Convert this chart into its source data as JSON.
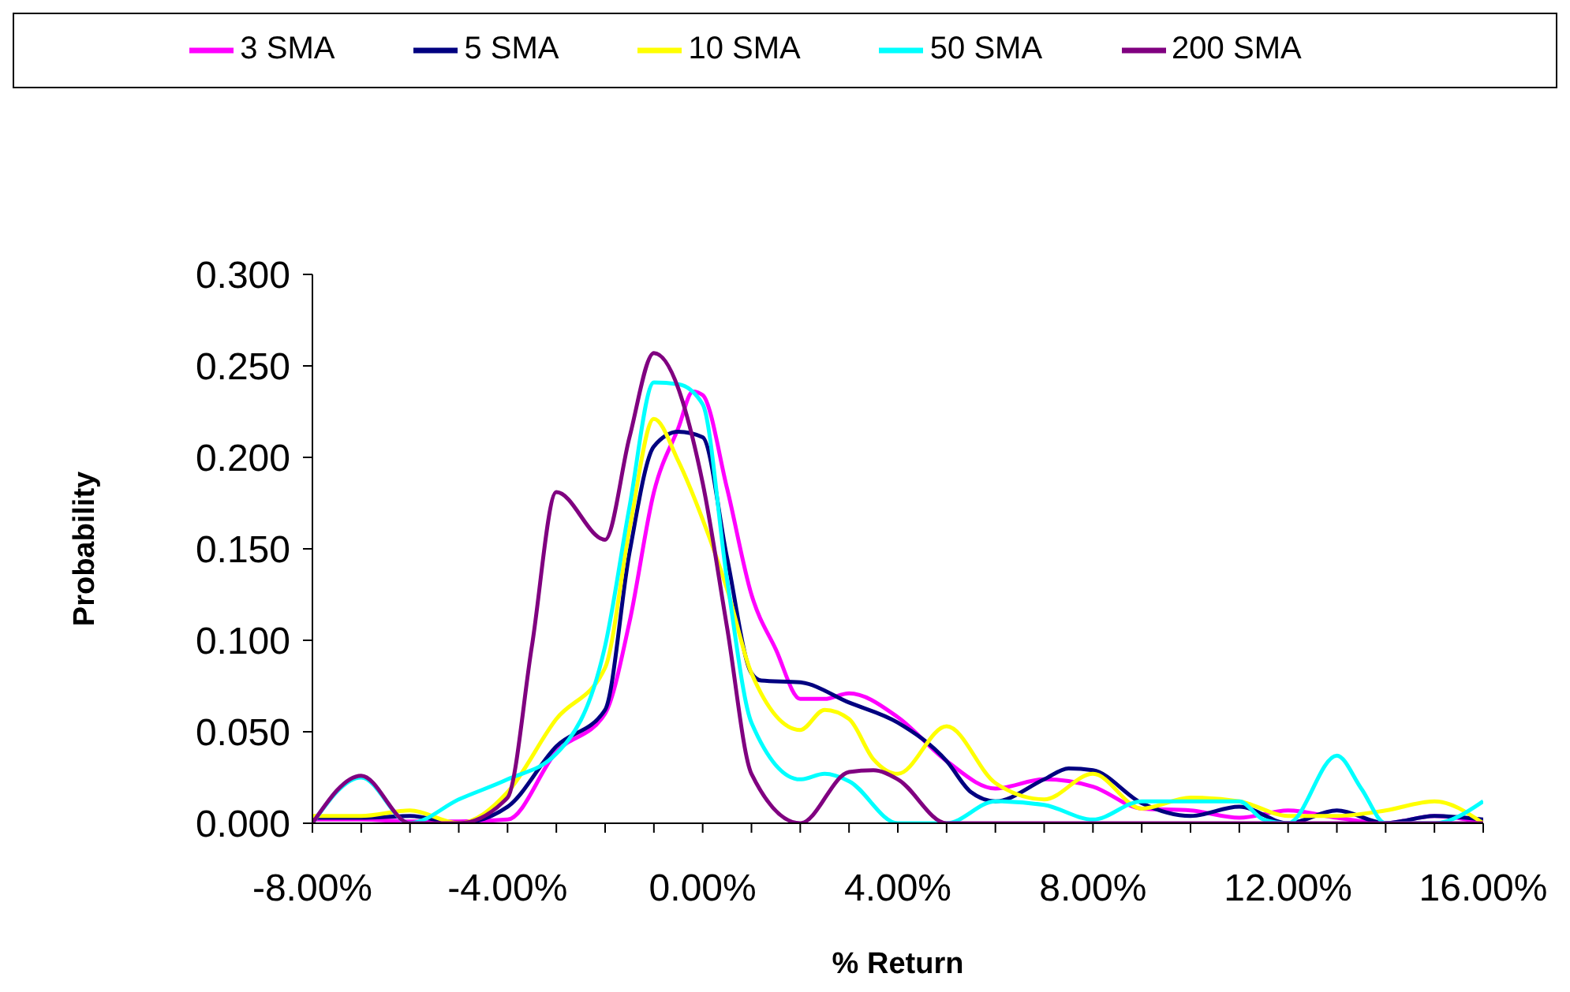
{
  "chart_data": {
    "type": "line",
    "xlabel": "% Return",
    "ylabel": "Probability",
    "legend": "top",
    "grid": false,
    "marker": "none",
    "line_style": "solid",
    "xlim": [
      -8,
      16
    ],
    "ylim": [
      0,
      0.3
    ],
    "xticks": [
      {
        "value": -8,
        "label": "-8.00%"
      },
      {
        "value": -7,
        "label": null
      },
      {
        "value": -6,
        "label": null
      },
      {
        "value": -5,
        "label": null
      },
      {
        "value": -4,
        "label": "-4.00%"
      },
      {
        "value": -3,
        "label": null
      },
      {
        "value": -2,
        "label": null
      },
      {
        "value": -1,
        "label": null
      },
      {
        "value": 0,
        "label": "0.00%"
      },
      {
        "value": 1,
        "label": null
      },
      {
        "value": 2,
        "label": null
      },
      {
        "value": 3,
        "label": null
      },
      {
        "value": 4,
        "label": "4.00%"
      },
      {
        "value": 5,
        "label": null
      },
      {
        "value": 6,
        "label": null
      },
      {
        "value": 7,
        "label": null
      },
      {
        "value": 8,
        "label": "8.00%"
      },
      {
        "value": 9,
        "label": null
      },
      {
        "value": 10,
        "label": null
      },
      {
        "value": 11,
        "label": null
      },
      {
        "value": 12,
        "label": "12.00%"
      },
      {
        "value": 13,
        "label": null
      },
      {
        "value": 14,
        "label": null
      },
      {
        "value": 15,
        "label": null
      },
      {
        "value": 16,
        "label": "16.00%"
      }
    ],
    "yticks": [
      {
        "value": 0,
        "label": "0.000"
      },
      {
        "value": 0.05,
        "label": "0.050"
      },
      {
        "value": 0.1,
        "label": "0.100"
      },
      {
        "value": 0.15,
        "label": "0.150"
      },
      {
        "value": 0.2,
        "label": "0.200"
      },
      {
        "value": 0.25,
        "label": "0.250"
      },
      {
        "value": 0.3,
        "label": "0.300"
      }
    ],
    "series": [
      {
        "name": "3 SMA",
        "color": "#ff00ff",
        "x": [
          -8,
          -7,
          -6,
          -5,
          -4,
          -3,
          -2,
          -1.5,
          -1,
          -0.5,
          -0.2,
          0,
          0.5,
          1,
          1.5,
          2,
          2.5,
          3,
          4,
          5,
          6,
          7,
          8,
          9,
          10,
          11,
          12,
          13,
          14,
          15,
          16
        ],
        "values": [
          0.002,
          0.002,
          0.001,
          0.001,
          0.002,
          0.039,
          0.06,
          0.11,
          0.181,
          0.216,
          0.236,
          0.234,
          0.183,
          0.125,
          0.095,
          0.068,
          0.068,
          0.071,
          0.058,
          0.034,
          0.019,
          0.024,
          0.02,
          0.008,
          0.007,
          0.003,
          0.007,
          0.003,
          0,
          0.004,
          0
        ]
      },
      {
        "name": "5 SMA",
        "color": "#000080",
        "x": [
          -8,
          -7,
          -6,
          -5,
          -4,
          -3,
          -2,
          -1.5,
          -1,
          -0.5,
          0,
          0.5,
          1,
          1.2,
          2,
          3,
          4,
          5,
          5.5,
          6,
          7,
          7.5,
          8,
          9,
          10,
          11,
          12,
          13,
          14,
          15,
          16
        ],
        "values": [
          0.003,
          0.003,
          0.004,
          0,
          0.009,
          0.042,
          0.062,
          0.148,
          0.206,
          0.214,
          0.211,
          0.145,
          0.082,
          0.078,
          0.077,
          0.066,
          0.055,
          0.034,
          0.017,
          0.012,
          0.024,
          0.03,
          0.029,
          0.011,
          0.004,
          0.009,
          0,
          0.007,
          0,
          0.004,
          0.002
        ]
      },
      {
        "name": "10 SMA",
        "color": "#ffff00",
        "x": [
          -8,
          -7,
          -6,
          -5,
          -4,
          -3,
          -2,
          -1.5,
          -1,
          -0.5,
          0,
          0.5,
          1,
          2,
          2.5,
          3,
          3.5,
          4,
          5,
          6,
          7,
          8,
          9,
          10,
          11,
          12,
          13,
          14,
          15,
          16
        ],
        "values": [
          0.004,
          0.004,
          0.007,
          0,
          0.017,
          0.057,
          0.085,
          0.161,
          0.221,
          0.198,
          0.166,
          0.128,
          0.082,
          0.051,
          0.062,
          0.057,
          0.035,
          0.027,
          0.053,
          0.022,
          0.013,
          0.027,
          0.008,
          0.014,
          0.012,
          0.004,
          0.004,
          0.007,
          0.012,
          0
        ]
      },
      {
        "name": "50 SMA",
        "color": "#00ffff",
        "x": [
          -8,
          -7,
          -6,
          -5,
          -4,
          -3,
          -2,
          -1.5,
          -1,
          -0.5,
          0,
          0.5,
          1,
          2,
          2.5,
          3,
          4,
          5,
          6,
          7,
          8,
          9,
          10,
          11,
          11.5,
          12,
          13,
          13.5,
          14,
          15,
          16
        ],
        "values": [
          0,
          0.025,
          0,
          0.013,
          0.024,
          0.038,
          0.097,
          0.173,
          0.241,
          0.24,
          0.229,
          0.133,
          0.055,
          0.024,
          0.027,
          0.023,
          0,
          0,
          0.012,
          0.01,
          0.002,
          0.012,
          0.012,
          0.012,
          0.002,
          0,
          0.037,
          0.019,
          0,
          0,
          0.012
        ]
      },
      {
        "name": "200 SMA",
        "color": "#800080",
        "x": [
          -8,
          -7,
          -6,
          -5,
          -4,
          -3.5,
          -3,
          -2,
          -1.5,
          -1,
          0,
          0.5,
          1,
          2,
          3,
          3.5,
          4,
          5,
          6,
          7,
          8,
          9,
          10,
          11,
          12,
          13,
          14,
          15,
          16
        ],
        "values": [
          0,
          0.026,
          0,
          0,
          0.014,
          0.097,
          0.181,
          0.155,
          0.211,
          0.257,
          0.186,
          0.107,
          0.027,
          0,
          0.028,
          0.029,
          0.024,
          0,
          0,
          0,
          0,
          0,
          0,
          0,
          0,
          0,
          0,
          0,
          0
        ]
      }
    ]
  }
}
